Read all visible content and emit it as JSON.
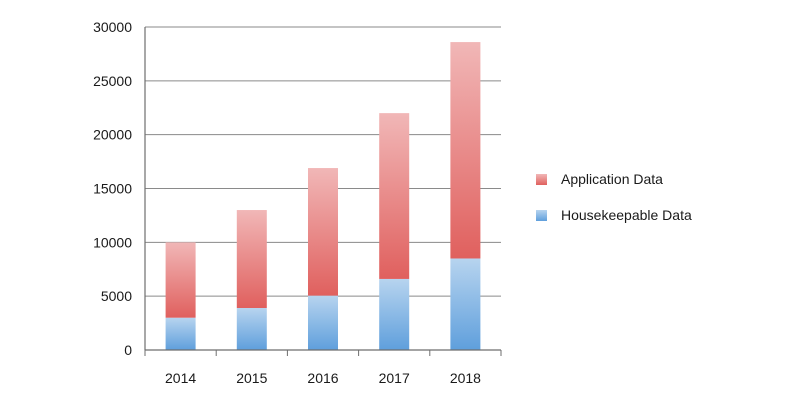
{
  "chart_data": {
    "type": "bar",
    "stacked": true,
    "categories": [
      "2014",
      "2015",
      "2016",
      "2017",
      "2018"
    ],
    "series": [
      {
        "name": "Housekeepable Data",
        "values": [
          3000,
          3900,
          5050,
          6600,
          8500
        ],
        "color": "#5f9fdc"
      },
      {
        "name": "Application Data",
        "values": [
          7000,
          9100,
          11850,
          15400,
          20100
        ],
        "color": "#e0605e"
      }
    ],
    "title": "",
    "xlabel": "",
    "ylabel": "",
    "ylim": [
      0,
      30000
    ],
    "yticks": [
      "0",
      "5000",
      "10000",
      "15000",
      "20000",
      "25000",
      "30000"
    ],
    "grid": true,
    "legend_position": "right",
    "legend_order": [
      "Application Data",
      "Housekeepable Data"
    ]
  }
}
